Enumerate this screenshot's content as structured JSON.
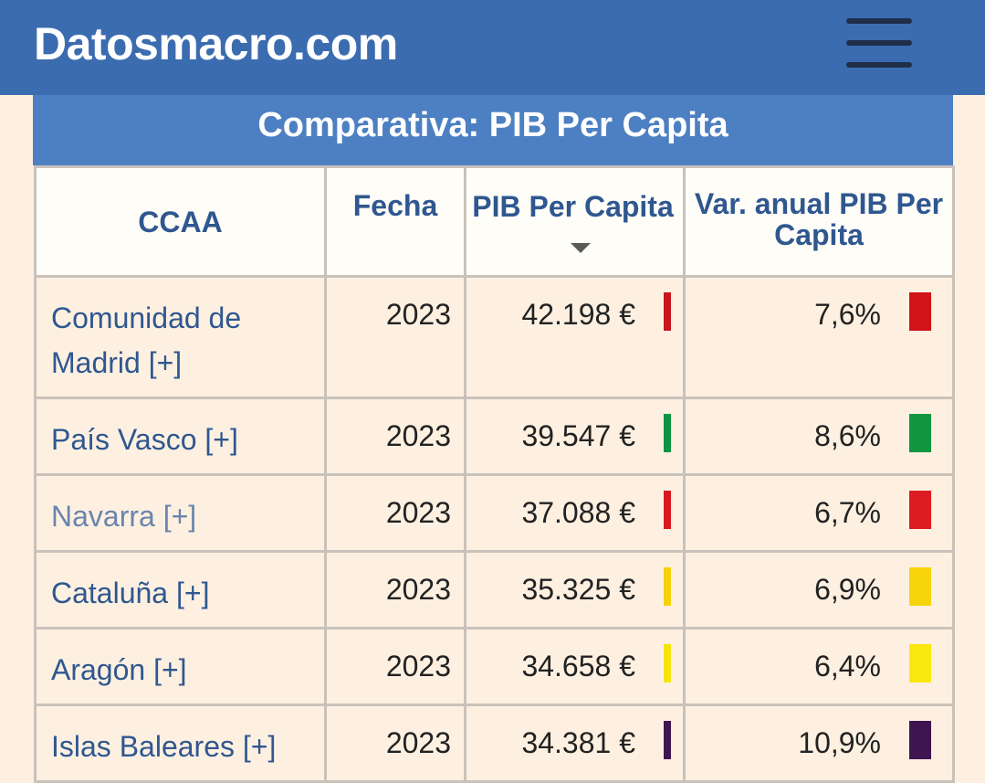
{
  "header": {
    "site_title": "Datosmacro.com",
    "menu_icon": "hamburger-menu-icon",
    "background_color": "#3b6cb0"
  },
  "section": {
    "title": "Comparativa: PIB Per Capita",
    "title_background": "#4d80c2"
  },
  "table": {
    "columns": {
      "ccaa": "CCAA",
      "fecha": "Fecha",
      "pib": "PIB Per Capita",
      "var": "Var. anual PIB Per Capita"
    },
    "sort": {
      "column": "PIB Per Capita",
      "direction": "descending",
      "icon": "sort-down-icon"
    },
    "rows": [
      {
        "name": "Comunidad de Madrid [+]",
        "fecha": "2023",
        "pib": "42.198 €",
        "pib_color": "#c8161d",
        "var": "7,6%",
        "var_color": "#d0141a"
      },
      {
        "name": "País Vasco [+]",
        "fecha": "2023",
        "pib": "39.547 €",
        "pib_color": "#0f9441",
        "var": "8,6%",
        "var_color": "#12953f"
      },
      {
        "name": "Navarra [+]",
        "fecha": "2023",
        "pib": "37.088 €",
        "pib_color": "#d8191f",
        "var": "6,7%",
        "var_color": "#dd1b22"
      },
      {
        "name": "Cataluña [+]",
        "fecha": "2023",
        "pib": "35.325 €",
        "pib_color": "#f3d20a",
        "var": "6,9%",
        "var_color": "#f7d40a"
      },
      {
        "name": "Aragón [+]",
        "fecha": "2023",
        "pib": "34.658 €",
        "pib_color": "#f6e40e",
        "var": "6,4%",
        "var_color": "#f8e80e"
      },
      {
        "name": "Islas Baleares [+]",
        "fecha": "2023",
        "pib": "34.381 €",
        "pib_color": "#3f1550",
        "var": "10,9%",
        "var_color": "#3f1550"
      }
    ]
  }
}
